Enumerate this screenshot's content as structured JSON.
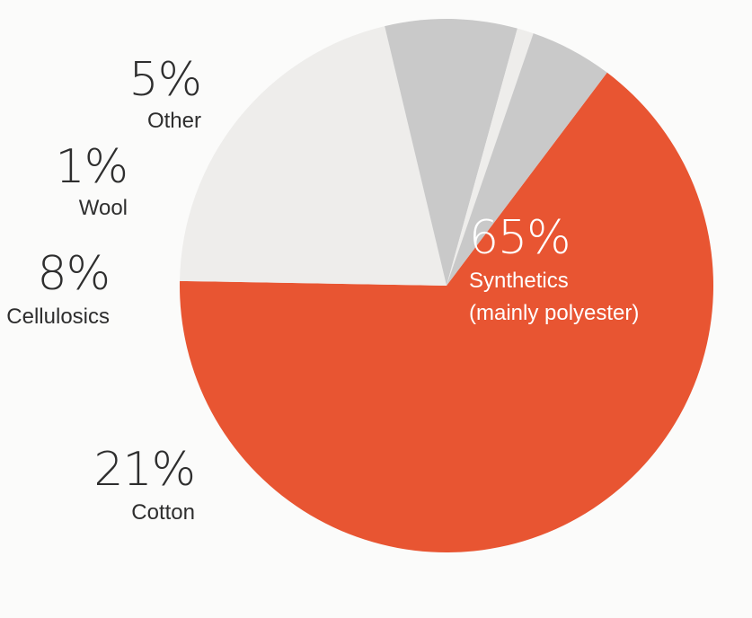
{
  "chart_data": {
    "type": "pie",
    "slices": [
      {
        "name": "Synthetics (mainly polyester)",
        "value": 65,
        "percent_label": "65%",
        "label_lines": [
          "Synthetics",
          "(mainly polyester)"
        ],
        "color": "#e85532",
        "label_color": "#ffffff"
      },
      {
        "name": "Cotton",
        "value": 21,
        "percent_label": "21%",
        "label_lines": [
          "Cotton"
        ],
        "color": "#eeedeb",
        "label_color": "#2e2e2e"
      },
      {
        "name": "Cellulosics",
        "value": 8,
        "percent_label": "8%",
        "label_lines": [
          "Cellulosics"
        ],
        "color": "#c9c9c9",
        "label_color": "#2e2e2e"
      },
      {
        "name": "Wool",
        "value": 1,
        "percent_label": "1%",
        "label_lines": [
          "Wool"
        ],
        "color": "#eeedeb",
        "label_color": "#2e2e2e"
      },
      {
        "name": "Other",
        "value": 5,
        "percent_label": "5%",
        "label_lines": [
          "Other"
        ],
        "color": "#c9c9c9",
        "label_color": "#2e2e2e"
      }
    ],
    "start_angle_deg": -53,
    "direction": "clockwise"
  }
}
